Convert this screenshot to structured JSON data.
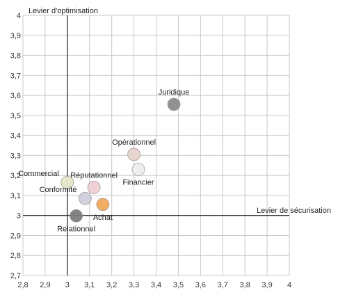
{
  "chart_data": {
    "type": "scatter",
    "xlabel": "Levier de sécurisation",
    "ylabel": "Levier d'optimisation",
    "xlim": [
      2.8,
      4.0
    ],
    "ylim": [
      2.7,
      4.0
    ],
    "x_ticks": [
      "2,8",
      "2,9",
      "3",
      "3,1",
      "3,2",
      "3,3",
      "3,4",
      "3,5",
      "3,6",
      "3,7",
      "3,8",
      "3,9",
      "4"
    ],
    "y_ticks": [
      "2,7",
      "2,8",
      "2,9",
      "3",
      "3,1",
      "3,2",
      "3,3",
      "3,4",
      "3,5",
      "3,6",
      "3,7",
      "3,8",
      "3,9",
      "4"
    ],
    "grid": true,
    "crosshair": {
      "x": 3.0,
      "y": 3.0
    },
    "points": [
      {
        "label": "Juridique",
        "x": 3.48,
        "y": 3.555,
        "color": "#8c8c8c",
        "label_pos": "above"
      },
      {
        "label": "Opérationnel",
        "x": 3.3,
        "y": 3.305,
        "color": "#e8d5cc",
        "label_pos": "above"
      },
      {
        "label": "Financier",
        "x": 3.32,
        "y": 3.23,
        "color": "#eeeeee",
        "label_pos": "below"
      },
      {
        "label": "Réputationnel",
        "x": 3.12,
        "y": 3.14,
        "color": "#f1cfd4",
        "label_pos": "above"
      },
      {
        "label": "Commercial",
        "x": 3.0,
        "y": 3.165,
        "color": "#e6e6c8",
        "label_pos": "left"
      },
      {
        "label": "Conformité",
        "x": 3.08,
        "y": 3.085,
        "color": "#cfcfdc",
        "label_pos": "left"
      },
      {
        "label": "Achat",
        "x": 3.16,
        "y": 3.055,
        "color": "#f2a95c",
        "label_pos": "below"
      },
      {
        "label": "Relationnel",
        "x": 3.04,
        "y": 2.998,
        "color": "#7d7d7d",
        "label_pos": "below"
      }
    ]
  }
}
